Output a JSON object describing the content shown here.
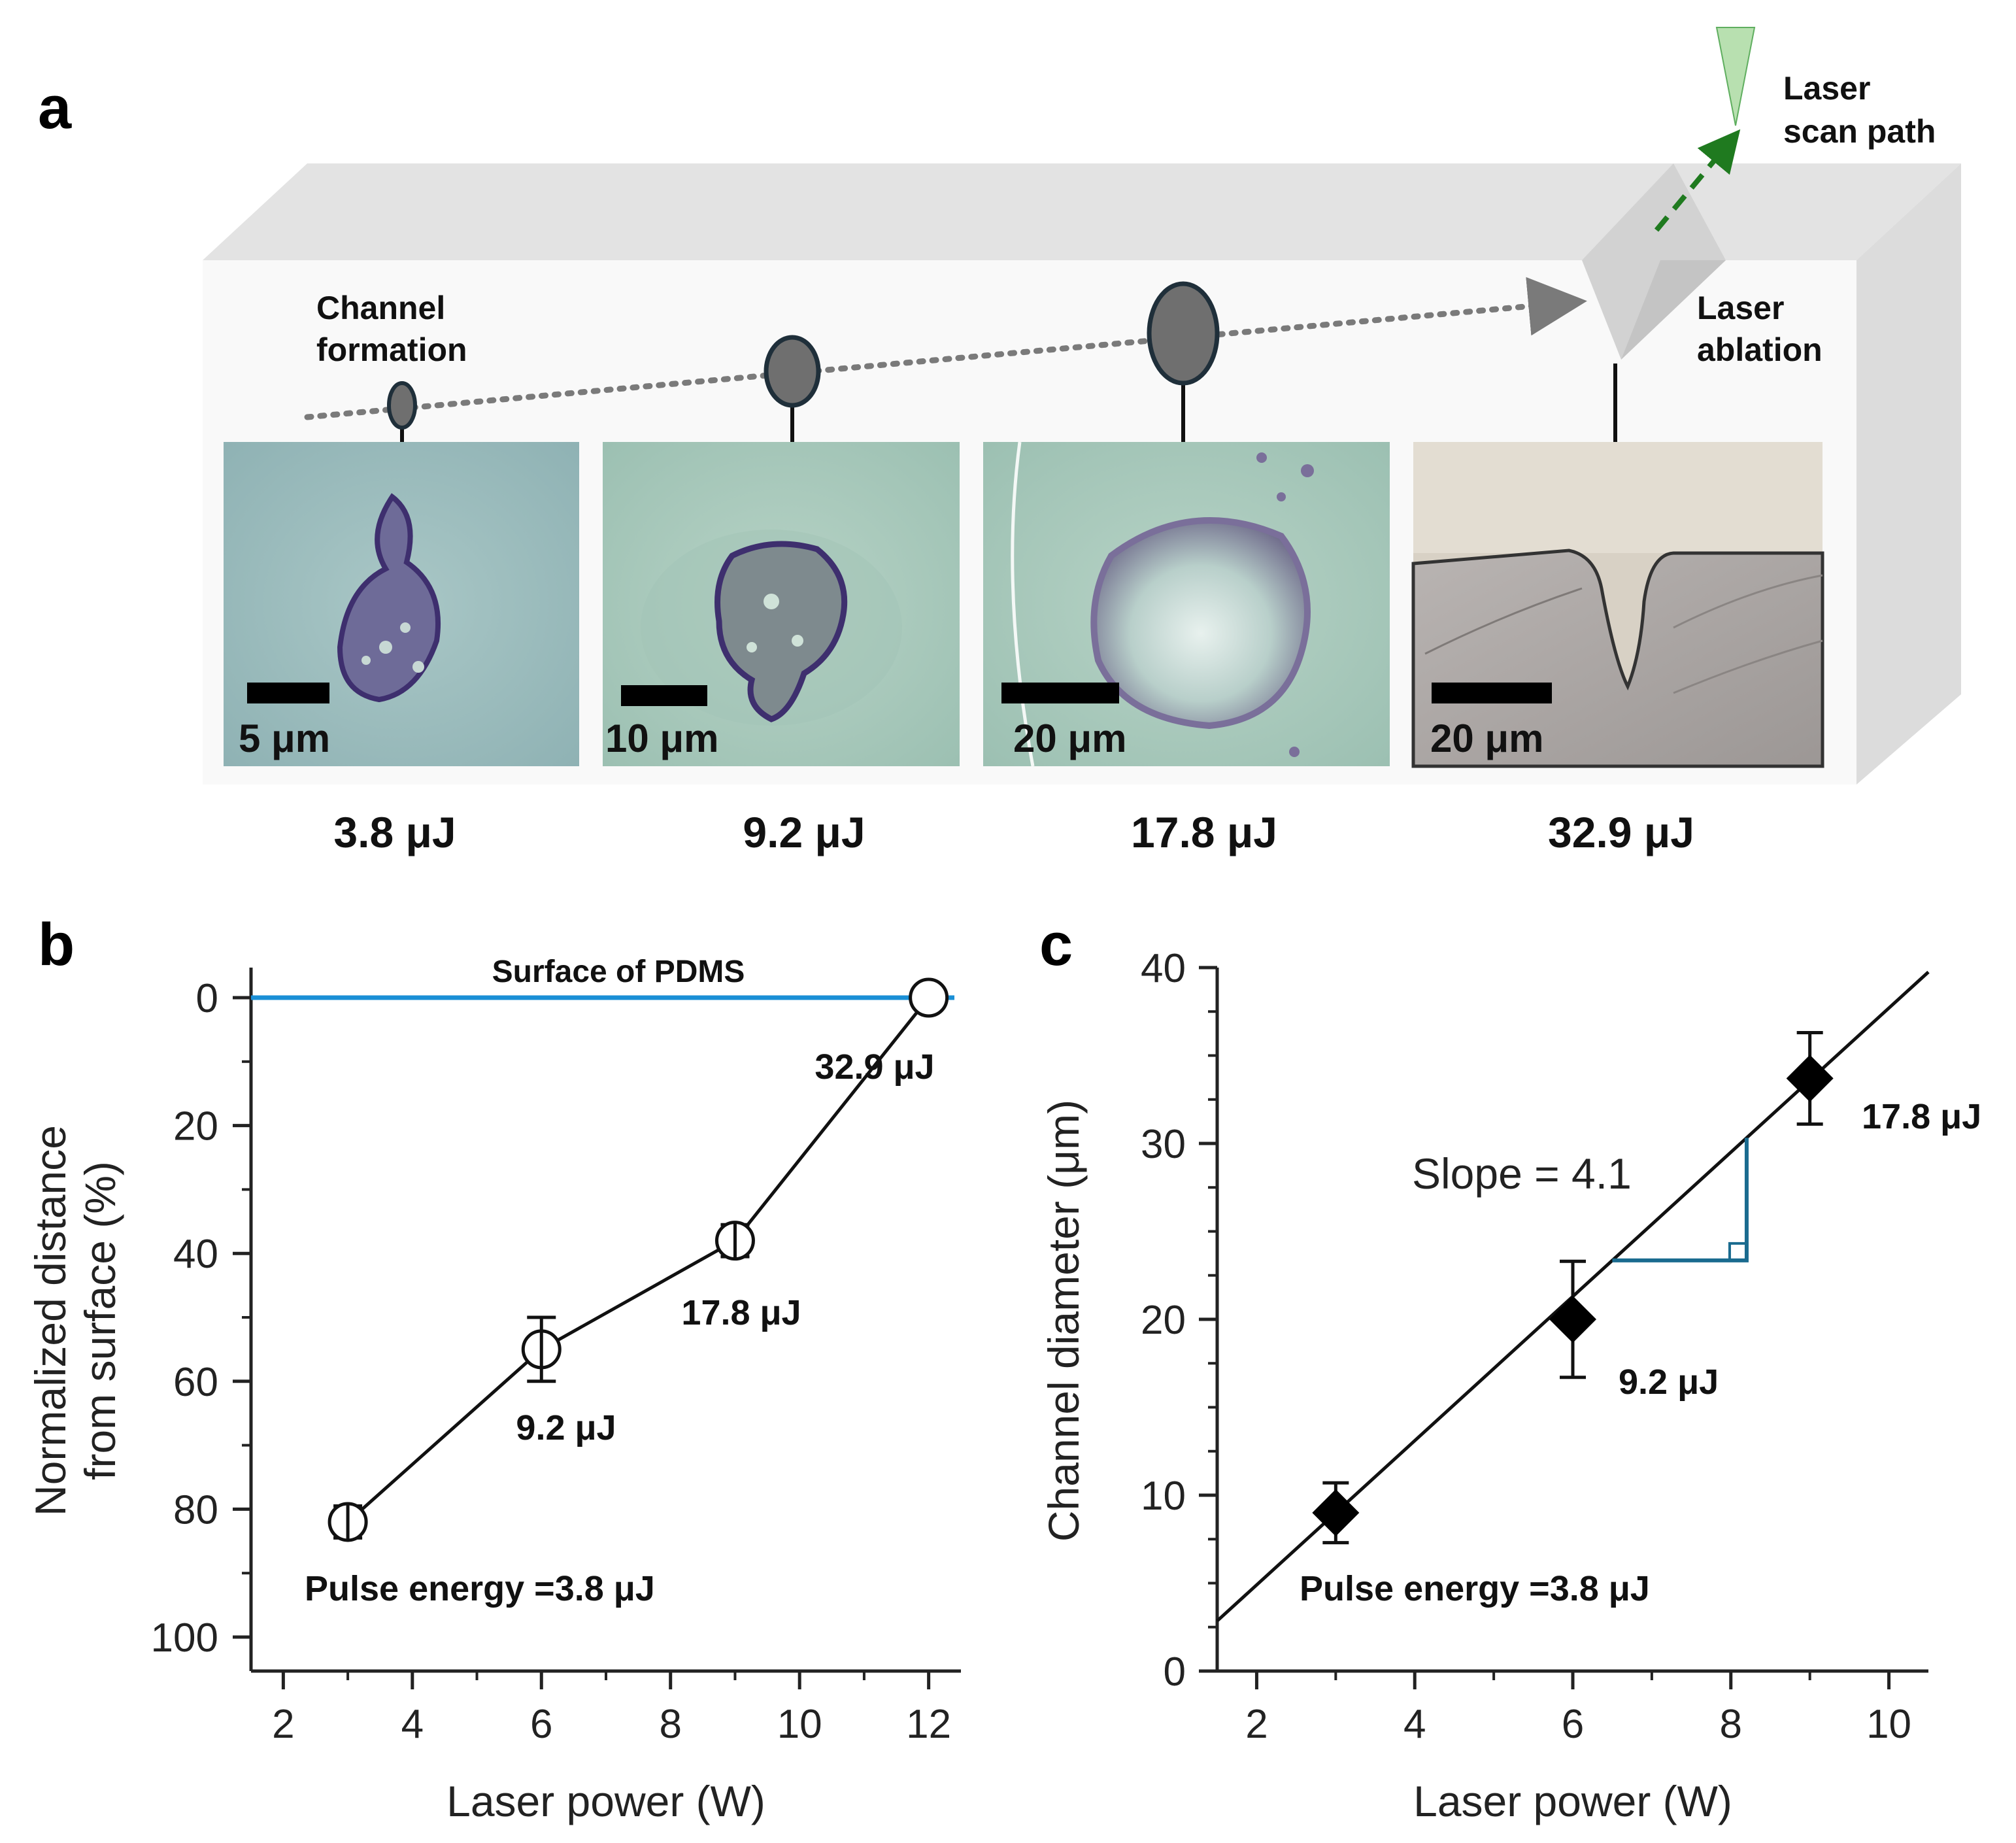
{
  "panel_a": {
    "letter": "a",
    "channel_formation": [
      "Channel",
      "formation"
    ],
    "laser_ablation": [
      "Laser",
      "ablation"
    ],
    "laser_scan_path": [
      "Laser",
      "scan path"
    ],
    "images": [
      {
        "scale_bar": "5 μm",
        "energy": "3.8 μJ"
      },
      {
        "scale_bar": "10 μm",
        "energy": "9.2 μJ"
      },
      {
        "scale_bar": "20 μm",
        "energy": "17.8 μJ"
      },
      {
        "scale_bar": "20 μm",
        "energy": "32.9 μJ"
      }
    ],
    "colors": {
      "block": "#e3e3e3",
      "channel": "#6f6f6f",
      "scan_arrow": "#1f7a1f",
      "laser_cone": "#b8e0b0"
    }
  },
  "chart_data": [
    {
      "panel": "b",
      "type": "line",
      "xlabel": "Laser power (W)",
      "ylabel": [
        "Normalized distance",
        "from surface (%)"
      ],
      "xlim": [
        1.5,
        12.5
      ],
      "ylim": [
        0,
        104
      ],
      "y_inverted": true,
      "xticks": [
        2,
        4,
        6,
        8,
        10,
        12
      ],
      "yticks": [
        0,
        20,
        40,
        60,
        80,
        100
      ],
      "reference_line": {
        "label": "Surface of PDMS",
        "y": 0,
        "color": "#1a8fd6"
      },
      "x": [
        3,
        6,
        9,
        12
      ],
      "y": [
        82,
        55,
        38,
        0
      ],
      "y_err": [
        2.5,
        5,
        2.5,
        0
      ],
      "point_labels": [
        "Pulse energy =3.8 μJ",
        "9.2 μJ",
        "17.8 μJ",
        "32.9 μJ"
      ],
      "marker": "open-circle"
    },
    {
      "panel": "c",
      "type": "scatter",
      "xlabel": "Laser power (W)",
      "ylabel": "Channel diameter (μm)",
      "xlim": [
        1.5,
        10.5
      ],
      "ylim": [
        0,
        40
      ],
      "xticks": [
        2,
        4,
        6,
        8,
        10
      ],
      "yticks": [
        0,
        10,
        20,
        30,
        40
      ],
      "x": [
        3,
        6,
        9
      ],
      "y": [
        9,
        20,
        33.7
      ],
      "y_err": [
        1.7,
        3.3,
        2.6
      ],
      "point_labels": [
        "Pulse energy =3.8 μJ",
        "9.2 μJ",
        "17.8 μJ"
      ],
      "marker": "filled-diamond",
      "fit_line": {
        "slope": 4.1,
        "intercept": -3.3,
        "x_range": [
          1.5,
          10.5
        ]
      },
      "slope_annotation": {
        "label": "Slope = 4.1",
        "color": "#1a6b8f",
        "x_from": 6.5,
        "x_to": 8.2
      }
    }
  ]
}
